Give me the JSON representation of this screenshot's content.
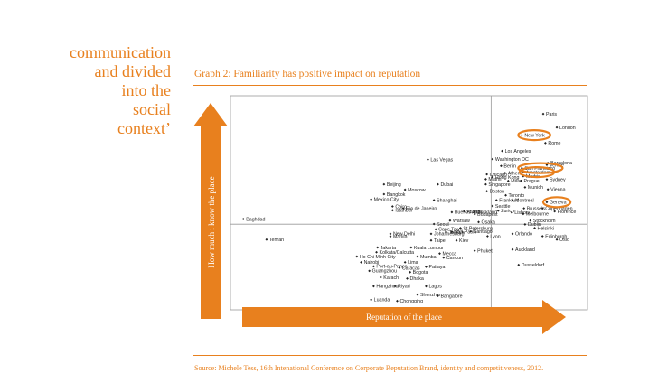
{
  "side_text": {
    "lines": [
      "communication",
      "and divided",
      "into the",
      "social",
      "context’"
    ]
  },
  "graph_title": "Graph 2: Familiarity has positive impact on reputation",
  "source": "Source: Michele Tess, 16th Intenational Conference on Corporate Reputation Brand, identity and competitiveness, 2012.",
  "colors": {
    "accent": "#E8801E",
    "frame": "#999999",
    "point": "#222222"
  },
  "chart_data": {
    "type": "scatter",
    "title": "Graph 2: Familiarity has positive impact on reputation",
    "xlabel": "Reputation of the place",
    "ylabel": "How much i know the place",
    "xlim": [
      0,
      100
    ],
    "ylim": [
      0,
      100
    ],
    "grid": false,
    "quadrant_dividers": {
      "x": 73,
      "y": 40
    },
    "highlighted": [
      "New York",
      "San Francisco",
      "Amsterdam",
      "Geneva"
    ],
    "points": [
      {
        "label": "Paris",
        "x": 87.6,
        "y": 91.5
      },
      {
        "label": "London",
        "x": 91.4,
        "y": 85.2
      },
      {
        "label": "New York",
        "x": 81.6,
        "y": 81.6
      },
      {
        "label": "Rome",
        "x": 88.2,
        "y": 77.9
      },
      {
        "label": "Los Angeles",
        "x": 76.1,
        "y": 74.2
      },
      {
        "label": "Washington DC",
        "x": 73.4,
        "y": 70.4
      },
      {
        "label": "Barcelona",
        "x": 88.9,
        "y": 68.6
      },
      {
        "label": "Venice",
        "x": 88.6,
        "y": 67.7
      },
      {
        "label": "Berlin",
        "x": 75.8,
        "y": 67.2
      },
      {
        "label": "San Francisco",
        "x": 81.6,
        "y": 66.2
      },
      {
        "label": "Amsterdam",
        "x": 82.0,
        "y": 64.3
      },
      {
        "label": "Chicago",
        "x": 71.8,
        "y": 63.3
      },
      {
        "label": "Athens",
        "x": 76.9,
        "y": 63.9
      },
      {
        "label": "Madrid",
        "x": 82.0,
        "y": 62.4
      },
      {
        "label": "Hong Kong",
        "x": 73.4,
        "y": 62.0
      },
      {
        "label": "Miami",
        "x": 71.5,
        "y": 61.0
      },
      {
        "label": "Milan",
        "x": 77.8,
        "y": 60.2
      },
      {
        "label": "Prague",
        "x": 81.4,
        "y": 60.2
      },
      {
        "label": "Sydney",
        "x": 88.6,
        "y": 60.9
      },
      {
        "label": "Singapore",
        "x": 71.5,
        "y": 58.6
      },
      {
        "label": "Munich",
        "x": 82.5,
        "y": 57.2
      },
      {
        "label": "Vienna",
        "x": 88.9,
        "y": 56.2
      },
      {
        "label": "Boston",
        "x": 71.8,
        "y": 55.4
      },
      {
        "label": "Toronto",
        "x": 77.1,
        "y": 53.5
      },
      {
        "label": "Geneva",
        "x": 88.6,
        "y": 50.3
      },
      {
        "label": "Frankfurt",
        "x": 74.5,
        "y": 51.2
      },
      {
        "label": "Montreal",
        "x": 79.0,
        "y": 51.2
      },
      {
        "label": "Seattle",
        "x": 73.4,
        "y": 48.5
      },
      {
        "label": "Brussels",
        "x": 82.2,
        "y": 47.4
      },
      {
        "label": "Copenhagen",
        "x": 87.4,
        "y": 47.4
      },
      {
        "label": "Zurich",
        "x": 75.0,
        "y": 46.3
      },
      {
        "label": "Lisbon",
        "x": 78.8,
        "y": 45.4
      },
      {
        "label": "Melbourne",
        "x": 82.0,
        "y": 44.8
      },
      {
        "label": "Florence",
        "x": 90.8,
        "y": 46.0
      },
      {
        "label": "Atlanta",
        "x": 65.4,
        "y": 46.0
      },
      {
        "label": "Budapest",
        "x": 68.4,
        "y": 44.7
      },
      {
        "label": "Dubai",
        "x": 58.1,
        "y": 58.6
      },
      {
        "label": "Las Vegas",
        "x": 55.3,
        "y": 70.2
      },
      {
        "label": "Beijing",
        "x": 43.0,
        "y": 58.6
      },
      {
        "label": "Moscow",
        "x": 48.9,
        "y": 56.1
      },
      {
        "label": "Bangkok",
        "x": 43.0,
        "y": 54.0
      },
      {
        "label": "Mexico City",
        "x": 39.4,
        "y": 51.6
      },
      {
        "label": "Shanghai",
        "x": 57.0,
        "y": 51.2
      },
      {
        "label": "Cairo",
        "x": 45.4,
        "y": 48.3
      },
      {
        "label": "Istanbul",
        "x": 45.4,
        "y": 46.5
      },
      {
        "label": "Rio de Janeiro",
        "x": 48.4,
        "y": 47.4
      },
      {
        "label": "Buenos Aires",
        "x": 62.0,
        "y": 45.6
      },
      {
        "label": "Auckland",
        "x": 68.4,
        "y": 45.6
      },
      {
        "label": "Seoul",
        "x": 57.0,
        "y": 40.1
      },
      {
        "label": "Warsaw",
        "x": 61.5,
        "y": 41.7
      },
      {
        "label": "Osaka",
        "x": 69.5,
        "y": 41.0
      },
      {
        "label": "Cape Town",
        "x": 57.5,
        "y": 37.6
      },
      {
        "label": "Tel Aviv",
        "x": 60.4,
        "y": 36.3
      },
      {
        "label": "Johannesburg",
        "x": 56.2,
        "y": 35.5
      },
      {
        "label": "St.Petersburg",
        "x": 64.4,
        "y": 38.2
      },
      {
        "label": "Santiago",
        "x": 67.3,
        "y": 36.6
      },
      {
        "label": "Dublin",
        "x": 82.5,
        "y": 39.9
      },
      {
        "label": "Stockholm",
        "x": 84.0,
        "y": 41.7
      },
      {
        "label": "Helsinki",
        "x": 85.2,
        "y": 38.2
      },
      {
        "label": "Sao Paolo",
        "x": 62.0,
        "y": 36.4
      },
      {
        "label": "Orlando",
        "x": 79.0,
        "y": 35.5
      },
      {
        "label": "Lyon",
        "x": 72.0,
        "y": 34.4
      },
      {
        "label": "Edinburgh",
        "x": 87.4,
        "y": 34.4
      },
      {
        "label": "Oslo",
        "x": 91.4,
        "y": 32.8
      },
      {
        "label": "New Delhi",
        "x": 44.8,
        "y": 35.5
      },
      {
        "label": "Manila",
        "x": 44.8,
        "y": 34.3
      },
      {
        "label": "Taipei",
        "x": 56.2,
        "y": 32.4
      },
      {
        "label": "Kiev",
        "x": 63.3,
        "y": 32.4
      },
      {
        "label": "Tehran",
        "x": 10.1,
        "y": 32.8
      },
      {
        "label": "Baghdad",
        "x": 3.6,
        "y": 42.4
      },
      {
        "label": "Jakarta",
        "x": 41.2,
        "y": 29.1
      },
      {
        "label": "Kuala Lumpur",
        "x": 50.6,
        "y": 29.1
      },
      {
        "label": "Mecca",
        "x": 58.6,
        "y": 26.3
      },
      {
        "label": "Phuket",
        "x": 68.4,
        "y": 27.6
      },
      {
        "label": "Auckland",
        "x": 79.0,
        "y": 28.2
      },
      {
        "label": "Kolkata/Calcutta",
        "x": 40.9,
        "y": 26.9
      },
      {
        "label": "Ho Chi Minh City",
        "x": 35.4,
        "y": 24.9
      },
      {
        "label": "Mumbai",
        "x": 52.4,
        "y": 24.9
      },
      {
        "label": "Cancun",
        "x": 59.7,
        "y": 24.4
      },
      {
        "label": "Nairobi",
        "x": 36.6,
        "y": 22.2
      },
      {
        "label": "Lima",
        "x": 48.9,
        "y": 22.2
      },
      {
        "label": "Port-au-Prince",
        "x": 40.1,
        "y": 20.3
      },
      {
        "label": "Caracas",
        "x": 47.3,
        "y": 19.6
      },
      {
        "label": "Pattaya",
        "x": 54.8,
        "y": 20.1
      },
      {
        "label": "Guangzhou",
        "x": 38.9,
        "y": 18.2
      },
      {
        "label": "Bogota",
        "x": 50.3,
        "y": 17.6
      },
      {
        "label": "Karachi",
        "x": 42.1,
        "y": 15.2
      },
      {
        "label": "Dhaka",
        "x": 49.5,
        "y": 14.6
      },
      {
        "label": "Dusseldorf",
        "x": 80.7,
        "y": 21.0
      },
      {
        "label": "Hangzhou",
        "x": 40.1,
        "y": 11.0
      },
      {
        "label": "Riyad",
        "x": 46.1,
        "y": 11.0
      },
      {
        "label": "Lagos",
        "x": 54.8,
        "y": 11.0
      },
      {
        "label": "Shenzhen",
        "x": 52.4,
        "y": 7.1
      },
      {
        "label": "Bangalore",
        "x": 58.1,
        "y": 6.5
      },
      {
        "label": "Luanda",
        "x": 39.4,
        "y": 4.7
      },
      {
        "label": "Chongqing",
        "x": 46.7,
        "y": 4.1
      }
    ]
  }
}
